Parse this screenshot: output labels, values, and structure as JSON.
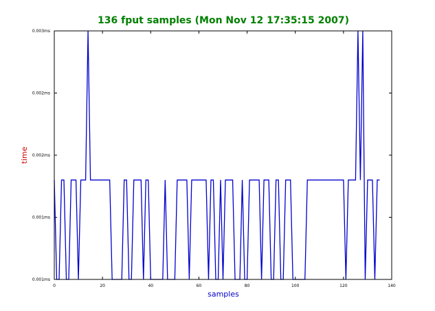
{
  "chart_data": {
    "type": "line",
    "title": "136 fput samples (Mon Nov 12 17:35:15 2007)",
    "xlabel": "samples",
    "ylabel": "time",
    "xlim": [
      0,
      140
    ],
    "ylim": [
      0.0005,
      0.003
    ],
    "x_ticks": [
      "0",
      "20",
      "40",
      "60",
      "80",
      "100",
      "120",
      "140"
    ],
    "y_ticks": [
      "0.001ms",
      "0.001ms",
      "0.002ms",
      "0.002ms",
      "0.003ms"
    ],
    "grid": false,
    "colors": {
      "title": "#008000",
      "xlabel": "#0000cc",
      "ylabel": "#cc0000",
      "line": "#0000cc"
    },
    "series": [
      {
        "x": [
          0,
          1,
          2,
          3,
          4,
          5,
          6,
          7,
          8,
          9,
          10,
          11,
          12,
          13,
          14,
          15,
          16,
          17,
          18,
          19,
          20,
          21,
          22,
          23,
          24,
          25,
          26,
          27,
          28,
          29,
          30,
          31,
          32,
          33,
          34,
          35,
          36,
          37,
          38,
          39,
          40,
          41,
          42,
          43,
          44,
          45,
          46,
          47,
          48,
          49,
          50,
          51,
          52,
          53,
          54,
          55,
          56,
          57,
          58,
          59,
          60,
          61,
          62,
          63,
          64,
          65,
          66,
          67,
          68,
          69,
          70,
          71,
          72,
          73,
          74,
          75,
          76,
          77,
          78,
          79,
          80,
          81,
          82,
          83,
          84,
          85,
          86,
          87,
          88,
          89,
          90,
          91,
          92,
          93,
          94,
          95,
          96,
          97,
          98,
          99,
          100,
          101,
          102,
          103,
          104,
          105,
          106,
          107,
          108,
          109,
          110,
          111,
          112,
          113,
          114,
          115,
          116,
          117,
          118,
          119,
          120,
          121,
          122,
          123,
          124,
          125,
          126,
          127,
          128,
          129,
          130,
          131,
          132,
          133,
          134,
          135
        ],
        "values": [
          0.0015,
          0.0005,
          0.0005,
          0.0015,
          0.0015,
          0.0005,
          0.0005,
          0.0015,
          0.0015,
          0.0015,
          0.0005,
          0.0015,
          0.0015,
          0.0015,
          0.003,
          0.0015,
          0.0015,
          0.0015,
          0.0015,
          0.0015,
          0.0015,
          0.0015,
          0.0015,
          0.0015,
          0.0005,
          0.0005,
          0.0005,
          0.0005,
          0.0005,
          0.0015,
          0.0015,
          0.0005,
          0.0005,
          0.0015,
          0.0015,
          0.0015,
          0.0015,
          0.0005,
          0.0015,
          0.0015,
          0.0005,
          0.0005,
          0.0005,
          0.0005,
          0.0005,
          0.0005,
          0.0015,
          0.0005,
          0.0005,
          0.0005,
          0.0005,
          0.0015,
          0.0015,
          0.0015,
          0.0015,
          0.0015,
          0.0005,
          0.0015,
          0.0015,
          0.0015,
          0.0015,
          0.0015,
          0.0015,
          0.0015,
          0.0005,
          0.0015,
          0.0015,
          0.0005,
          0.0005,
          0.0015,
          0.0005,
          0.0015,
          0.0015,
          0.0015,
          0.0015,
          0.0005,
          0.0005,
          0.0005,
          0.0015,
          0.0005,
          0.0005,
          0.0015,
          0.0015,
          0.0015,
          0.0015,
          0.0015,
          0.0005,
          0.0015,
          0.0015,
          0.0015,
          0.0005,
          0.0005,
          0.0015,
          0.0015,
          0.0005,
          0.0005,
          0.0015,
          0.0015,
          0.0015,
          0.0005,
          0.0005,
          0.0005,
          0.0005,
          0.0005,
          0.0005,
          0.0015,
          0.0015,
          0.0015,
          0.0015,
          0.0015,
          0.0015,
          0.0015,
          0.0015,
          0.0015,
          0.0015,
          0.0015,
          0.0015,
          0.0015,
          0.0015,
          0.0015,
          0.0015,
          0.0005,
          0.0015,
          0.0015,
          0.0015,
          0.0015,
          0.003,
          0.0015,
          0.003,
          0.0005,
          0.0015,
          0.0015,
          0.0015,
          0.0005,
          0.0015,
          0.0015
        ]
      }
    ]
  }
}
